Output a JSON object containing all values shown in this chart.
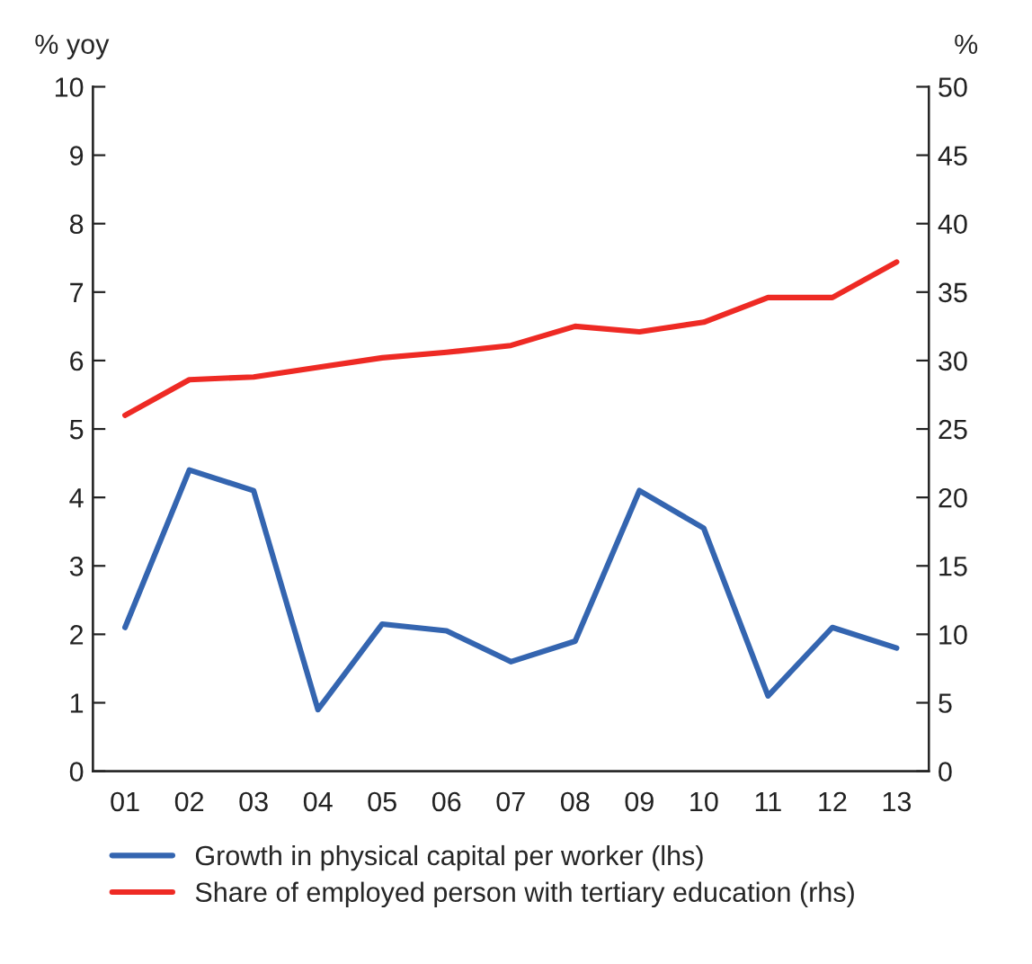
{
  "chart_data": {
    "type": "line",
    "ylabel": "% yoy",
    "y2label": "%",
    "categories": [
      "01",
      "02",
      "03",
      "04",
      "05",
      "06",
      "07",
      "08",
      "09",
      "10",
      "11",
      "12",
      "13"
    ],
    "series": [
      {
        "name": "Growth in physical capital per worker (lhs)",
        "color": "#3465b0",
        "values": [
          2.1,
          4.4,
          4.1,
          0.9,
          2.15,
          2.05,
          1.6,
          1.9,
          4.1,
          3.55,
          1.1,
          2.1,
          1.8
        ]
      },
      {
        "name": "Share of employed person with tertiary education (rhs)",
        "color": "#ee2a24",
        "axis": "y2",
        "values": [
          26.0,
          28.6,
          28.8,
          29.5,
          30.2,
          30.6,
          31.1,
          32.5,
          32.1,
          32.8,
          34.6,
          34.6,
          37.2
        ]
      }
    ],
    "ylim": [
      0,
      10
    ],
    "yticks": [
      0,
      1,
      2,
      3,
      4,
      5,
      6,
      7,
      8,
      9,
      10
    ],
    "y2lim": [
      0,
      50
    ],
    "y2ticks": [
      0,
      5,
      10,
      15,
      20,
      25,
      30,
      35,
      40,
      45,
      50
    ],
    "grid": false,
    "legend": "bottom"
  }
}
